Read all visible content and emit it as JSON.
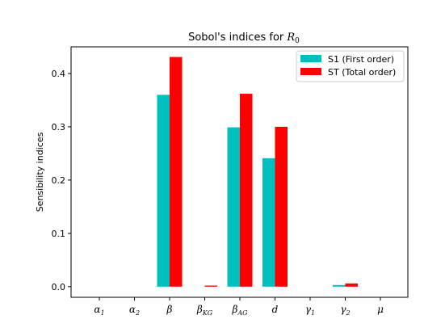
{
  "chart_data": {
    "type": "bar",
    "title": "Sobol's indices for ",
    "title_symbol": "R",
    "title_symbol_sub": "0",
    "xlabel": "",
    "ylabel": "Sensibility indices",
    "ylim": [
      -0.02,
      0.45
    ],
    "yticks": [
      0.0,
      0.1,
      0.2,
      0.3,
      0.4
    ],
    "ytick_labels": [
      "0.0",
      "0.1",
      "0.2",
      "0.3",
      "0.4"
    ],
    "grid": false,
    "legend_position": "upper-right",
    "categories": [
      {
        "base": "α",
        "sub": "1"
      },
      {
        "base": "α",
        "sub": "2"
      },
      {
        "base": "β",
        "sub": ""
      },
      {
        "base": "β",
        "sub": "KG"
      },
      {
        "base": "β",
        "sub": "AG"
      },
      {
        "base": "d",
        "sub": ""
      },
      {
        "base": "γ",
        "sub": "1"
      },
      {
        "base": "γ",
        "sub": "2"
      },
      {
        "base": "μ",
        "sub": ""
      }
    ],
    "series": [
      {
        "name": "S1 (First order)",
        "color": "#00bfbf",
        "values": [
          0.0,
          0.0,
          0.36,
          0.0,
          0.299,
          0.241,
          0.0,
          0.003,
          0.0
        ]
      },
      {
        "name": "ST (Total order)",
        "color": "#ff0000",
        "values": [
          0.0,
          0.0,
          0.431,
          0.002,
          0.362,
          0.3,
          0.0,
          0.006,
          0.0
        ]
      }
    ]
  }
}
